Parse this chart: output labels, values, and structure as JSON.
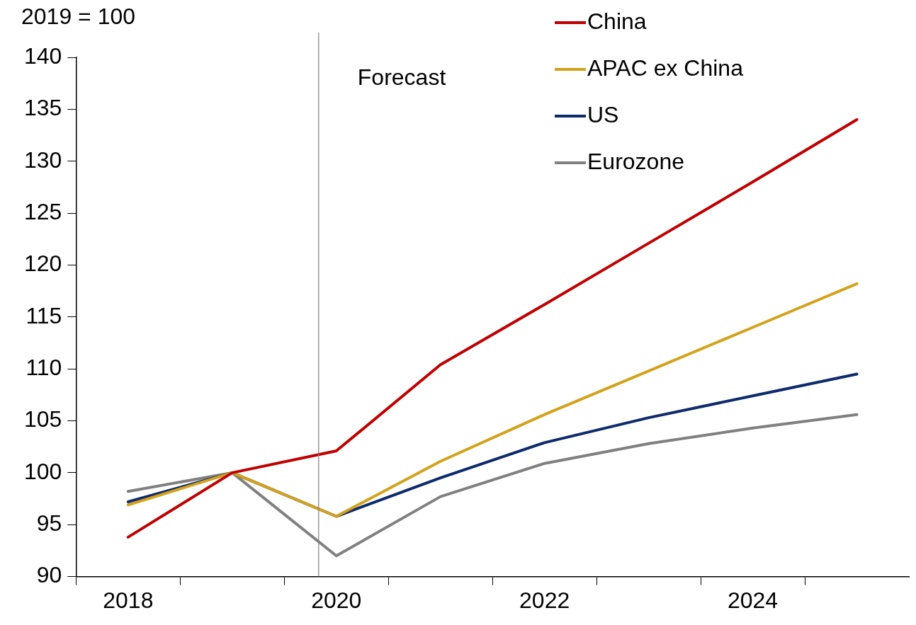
{
  "chart_data": {
    "type": "line",
    "ylabel": "2019 = 100",
    "x": [
      2018,
      2019,
      2020,
      2021,
      2022,
      2023,
      2024,
      2025
    ],
    "xlim": [
      2017.5,
      2025.5
    ],
    "xticks": [
      {
        "value": 2017.5,
        "label": null
      },
      {
        "value": 2018,
        "label": "2018"
      },
      {
        "value": 2018.5,
        "label": null
      },
      {
        "value": 2019.5,
        "label": null
      },
      {
        "value": 2020,
        "label": "2020"
      },
      {
        "value": 2020.5,
        "label": null
      },
      {
        "value": 2021.5,
        "label": null
      },
      {
        "value": 2022,
        "label": "2022"
      },
      {
        "value": 2022.5,
        "label": null
      },
      {
        "value": 2023.5,
        "label": null
      },
      {
        "value": 2024,
        "label": "2024"
      },
      {
        "value": 2024.5,
        "label": null
      }
    ],
    "ylim": [
      90,
      140
    ],
    "yticks": [
      90,
      95,
      100,
      105,
      110,
      115,
      120,
      125,
      130,
      135,
      140
    ],
    "grid": false,
    "legend": "top right",
    "marker": "none",
    "line_style": "solid",
    "ref_lines": [
      {
        "axis": "x",
        "value": 2019.83,
        "label": "Forecast",
        "color": "#808080"
      }
    ],
    "series": [
      {
        "name": "China",
        "color": "#c00000",
        "values": [
          93.8,
          100,
          102.1,
          110.4,
          116.2,
          122.1,
          128,
          134
        ]
      },
      {
        "name": "APAC ex China",
        "color": "#d4a21a",
        "values": [
          96.9,
          100,
          95.8,
          101.1,
          105.6,
          109.8,
          114,
          118.2
        ]
      },
      {
        "name": "US",
        "color": "#0d2a6b",
        "values": [
          97.2,
          100,
          95.8,
          99.5,
          102.9,
          105.3,
          107.4,
          109.5
        ]
      },
      {
        "name": "Eurozone",
        "color": "#808080",
        "values": [
          98.2,
          100,
          92,
          97.7,
          100.9,
          102.8,
          104.3,
          105.6
        ]
      }
    ]
  }
}
